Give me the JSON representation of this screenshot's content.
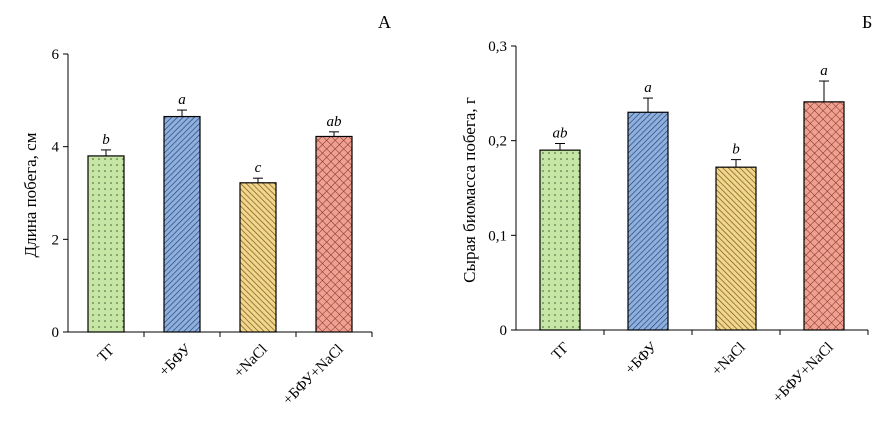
{
  "chart_data": [
    {
      "type": "bar",
      "panel_label": "А",
      "categories": [
        "ТГ",
        "+БФУ",
        "+NaCl",
        "+БФУ+NaCl"
      ],
      "values": [
        3.8,
        4.65,
        3.22,
        4.22
      ],
      "errors": [
        0.13,
        0.14,
        0.1,
        0.1
      ],
      "significance": [
        "b",
        "a",
        "c",
        "ab"
      ],
      "ylabel": "Длина побега, см",
      "ylim": [
        0,
        6
      ],
      "yticks": [
        "0",
        "2",
        "4",
        "6"
      ],
      "ytick_values": [
        0,
        2,
        4,
        6
      ],
      "grid": false
    },
    {
      "type": "bar",
      "panel_label": "Б",
      "categories": [
        "ТГ",
        "+БФУ",
        "+NaCl",
        "+БФУ+NaCl"
      ],
      "values": [
        0.19,
        0.23,
        0.172,
        0.241
      ],
      "errors": [
        0.007,
        0.015,
        0.008,
        0.022
      ],
      "significance": [
        "ab",
        "a",
        "b",
        "a"
      ],
      "ylabel": "Сырая биомасса побега, г",
      "ylim": [
        0,
        0.3
      ],
      "yticks": [
        "0",
        "0,1",
        "0,2",
        "0,3"
      ],
      "ytick_values": [
        0,
        0.1,
        0.2,
        0.3
      ],
      "grid": false
    }
  ],
  "colors": {
    "bar_fills": [
      "#c6e6a6",
      "#8fb0dc",
      "#f2d68c",
      "#f0a090"
    ],
    "bar_patterns": [
      "dots",
      "diagonal-lines",
      "diagonal-lines",
      "crosshatch"
    ]
  }
}
